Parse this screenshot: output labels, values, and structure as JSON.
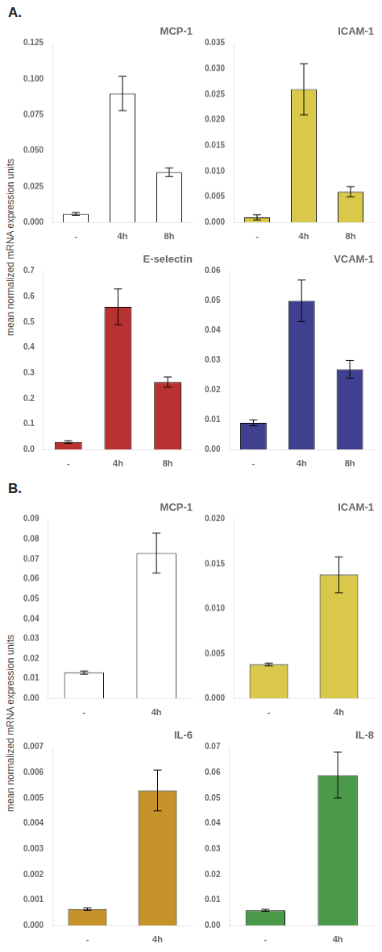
{
  "chart_data": [
    {
      "type": "bar",
      "title": "MCP-1",
      "annotations": [
        "A."
      ],
      "ylabel": "mean normalized mRNA expression units",
      "categories": [
        "-",
        "4h",
        "8h"
      ],
      "values": [
        0.006,
        0.09,
        0.035
      ],
      "errors": [
        0.001,
        0.012,
        0.003
      ],
      "color": "#ffffff",
      "ylim": [
        0,
        0.125
      ],
      "yticks": [
        {
          "value": 0,
          "label": "0.000"
        },
        0.025,
        {
          "value": 0.05,
          "label": "0.050"
        },
        0.075,
        {
          "value": 0.1,
          "label": "0.100"
        },
        0.125
      ],
      "grid": false
    },
    {
      "type": "bar",
      "title": "ICAM-1",
      "categories": [
        "-",
        "4h",
        "8h"
      ],
      "values": [
        0.001,
        0.026,
        0.006
      ],
      "errors": [
        0.0005,
        0.005,
        0.001
      ],
      "color": "#d9c84a",
      "ylim": [
        0,
        0.035
      ],
      "yticks": [
        {
          "value": 0,
          "label": "0.000"
        },
        0.005,
        {
          "value": 0.01,
          "label": "0.010"
        },
        0.015,
        {
          "value": 0.02,
          "label": "0.020"
        },
        0.025,
        {
          "value": 0.03,
          "label": "0.030"
        },
        0.035
      ],
      "grid": false
    },
    {
      "type": "bar",
      "title": "E-selectin",
      "categories": [
        "-",
        "4h",
        "8h"
      ],
      "values": [
        0.03,
        0.56,
        0.265
      ],
      "errors": [
        0.005,
        0.07,
        0.02
      ],
      "color": "#b83232",
      "ylim": [
        0,
        0.7
      ],
      "yticks": [
        {
          "value": 0,
          "label": "0.0"
        },
        0.1,
        0.2,
        0.3,
        0.4,
        0.5,
        0.6,
        0.7
      ],
      "grid": false
    },
    {
      "type": "bar",
      "title": "VCAM-1",
      "categories": [
        "-",
        "4h",
        "8h"
      ],
      "values": [
        0.009,
        0.05,
        0.027
      ],
      "errors": [
        0.001,
        0.007,
        0.003
      ],
      "color": "#404090",
      "ylim": [
        0,
        0.06
      ],
      "yticks": [
        {
          "value": 0,
          "label": "0.00"
        },
        0.01,
        0.02,
        0.03,
        0.04,
        0.05,
        0.06
      ],
      "grid": false
    },
    {
      "type": "bar",
      "title": "MCP-1",
      "annotations": [
        "B."
      ],
      "ylabel": "mean normalized mRNA expression units",
      "categories": [
        "-",
        "4h"
      ],
      "values": [
        0.013,
        0.073
      ],
      "errors": [
        0.0008,
        0.01
      ],
      "color": "#ffffff",
      "ylim": [
        0,
        0.09
      ],
      "yticks": [
        {
          "value": 0,
          "label": "0.00"
        },
        0.01,
        0.02,
        0.03,
        0.04,
        0.05,
        0.06,
        0.07,
        0.08,
        0.09
      ],
      "grid": false
    },
    {
      "type": "bar",
      "title": "ICAM-1",
      "categories": [
        "-",
        "4h"
      ],
      "values": [
        0.0038,
        0.0138
      ],
      "errors": [
        0.00015,
        0.002
      ],
      "color": "#d9c84a",
      "ylim": [
        0,
        0.02
      ],
      "yticks": [
        {
          "value": 0,
          "label": "0.000"
        },
        0.005,
        {
          "value": 0.01,
          "label": "0.010"
        },
        0.015,
        {
          "value": 0.02,
          "label": "0.020"
        }
      ],
      "grid": false
    },
    {
      "type": "bar",
      "title": "IL-6",
      "categories": [
        "-",
        "4h"
      ],
      "values": [
        0.00065,
        0.0053
      ],
      "errors": [
        5e-05,
        0.0008
      ],
      "color": "#c8922a",
      "ylim": [
        0,
        0.007
      ],
      "yticks": [
        {
          "value": 0,
          "label": "0.000"
        },
        0.001,
        0.002,
        0.003,
        0.004,
        0.005,
        0.006,
        0.007
      ],
      "grid": false
    },
    {
      "type": "bar",
      "title": "IL-8",
      "categories": [
        "-",
        "4h"
      ],
      "values": [
        0.006,
        0.059
      ],
      "errors": [
        0.0004,
        0.009
      ],
      "color": "#4a9a4a",
      "ylim": [
        0,
        0.07
      ],
      "yticks": [
        {
          "value": 0,
          "label": "0.00"
        },
        0.01,
        0.02,
        0.03,
        0.04,
        0.05,
        0.06,
        0.07
      ],
      "grid": false
    }
  ]
}
